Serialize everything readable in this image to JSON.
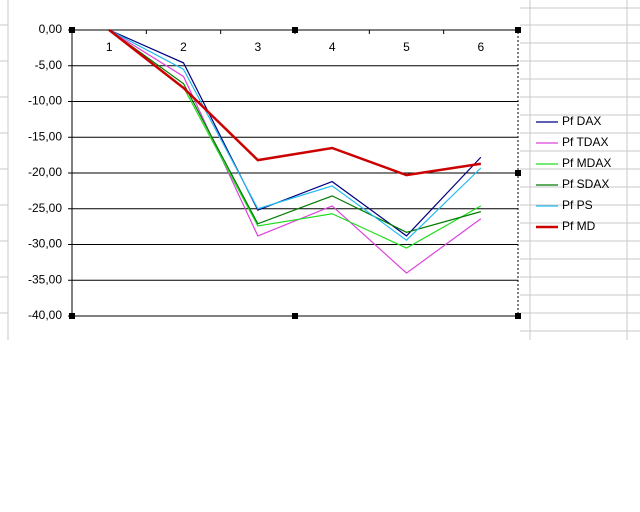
{
  "chart_data": {
    "type": "line",
    "categories": [
      "1",
      "2",
      "3",
      "4",
      "5",
      "6"
    ],
    "series": [
      {
        "name": "Pf DAX",
        "color": "#000080",
        "values": [
          0,
          -4.6,
          -25.2,
          -21.2,
          -28.8,
          -17.8
        ]
      },
      {
        "name": "Pf TDAX",
        "color": "#dd44dd",
        "values": [
          0,
          -6.5,
          -28.8,
          -24.6,
          -34.0,
          -26.4
        ]
      },
      {
        "name": "Pf MDAX",
        "color": "#22dd22",
        "values": [
          0,
          -8.0,
          -27.4,
          -25.7,
          -30.5,
          -24.6
        ]
      },
      {
        "name": "Pf SDAX",
        "color": "#007a00",
        "values": [
          0,
          -7.5,
          -27.1,
          -23.2,
          -28.3,
          -25.4
        ]
      },
      {
        "name": "Pf PS",
        "color": "#22bbee",
        "values": [
          0,
          -5.5,
          -25.0,
          -21.8,
          -29.4,
          -19.3
        ]
      },
      {
        "name": "Pf MD",
        "color": "#cc0000",
        "values": [
          0,
          -8.1,
          -18.2,
          -16.5,
          -20.3,
          -18.7
        ]
      }
    ],
    "ylim": [
      -40,
      0
    ],
    "yticks": [
      {
        "value": 0,
        "label": "0,00"
      },
      {
        "value": -5,
        "label": "-5,00"
      },
      {
        "value": -10,
        "label": "-10,00"
      },
      {
        "value": -15,
        "label": "-15,00"
      },
      {
        "value": -20,
        "label": "-20,00"
      },
      {
        "value": -25,
        "label": "-25,00"
      },
      {
        "value": -30,
        "label": "-30,00"
      },
      {
        "value": -35,
        "label": "-35,00"
      },
      {
        "value": -40,
        "label": "-40,00"
      }
    ],
    "grid": true,
    "legend": "right"
  }
}
